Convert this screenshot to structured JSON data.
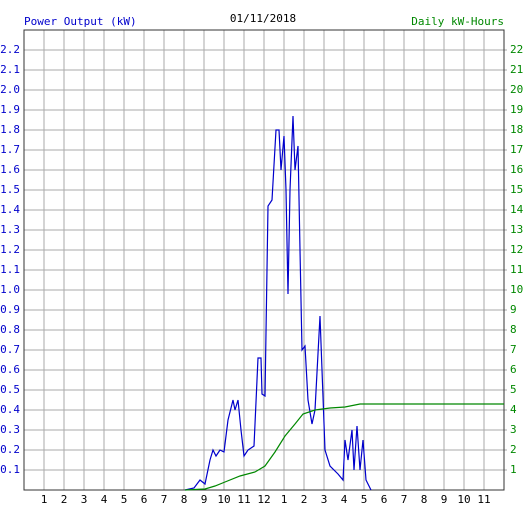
{
  "chart_data": {
    "type": "line",
    "title": "01/11/2018",
    "ylabel": "Power Output (kW)",
    "y2label": "Daily kW-Hours",
    "xlim": [
      0,
      24
    ],
    "xticks": [
      1,
      2,
      3,
      4,
      5,
      6,
      7,
      8,
      9,
      10,
      11,
      12,
      {
        "value": 13,
        "label": "1"
      },
      {
        "value": 14,
        "label": "2"
      },
      {
        "value": 15,
        "label": "3"
      },
      {
        "value": 16,
        "label": "4"
      },
      {
        "value": 17,
        "label": "5"
      },
      {
        "value": 18,
        "label": "6"
      },
      {
        "value": 19,
        "label": "7"
      },
      {
        "value": 20,
        "label": "8"
      },
      {
        "value": 21,
        "label": "9"
      },
      {
        "value": 22,
        "label": "10"
      },
      {
        "value": 23,
        "label": "11"
      }
    ],
    "ylim": [
      0,
      2.3
    ],
    "yticks": [
      0.1,
      0.2,
      0.3,
      0.4,
      0.5,
      0.6,
      0.7,
      0.8,
      0.9,
      {
        "value": 1,
        "label": "1.0"
      },
      1.1,
      1.2,
      1.3,
      1.4,
      1.5,
      1.6,
      1.7,
      1.8,
      1.9,
      {
        "value": 2,
        "label": "2.0"
      },
      2.1,
      2.2
    ],
    "y2lim": [
      0,
      23
    ],
    "y2ticks": [
      1,
      2,
      3,
      4,
      5,
      6,
      7,
      8,
      9,
      10,
      11,
      12,
      13,
      14,
      15,
      16,
      17,
      18,
      19,
      20,
      21,
      22
    ],
    "grid": true,
    "ylabel_color": "#0000cc",
    "y2label_color": "#008800",
    "series": [
      {
        "color": "#0000cc",
        "axis": "y",
        "x": [
          8.05,
          8.5,
          8.8,
          9.05,
          9.3,
          9.45,
          9.6,
          9.8,
          10.0,
          10.2,
          10.45,
          10.55,
          10.7,
          10.85,
          11.0,
          11.2,
          11.5,
          11.7,
          11.85,
          11.9,
          12.05,
          12.2,
          12.4,
          12.6,
          12.75,
          12.85,
          13.0,
          13.1,
          13.2,
          13.3,
          13.45,
          13.55,
          13.7,
          13.8,
          13.9,
          14.05,
          14.2,
          14.4,
          14.55,
          14.8,
          14.9,
          15.05,
          15.3,
          15.7,
          15.95,
          16.05,
          16.2,
          16.4,
          16.5,
          16.65,
          16.8,
          16.95,
          17.1,
          17.35
        ],
        "values": [
          0,
          0.01,
          0.05,
          0.03,
          0.15,
          0.2,
          0.17,
          0.2,
          0.19,
          0.35,
          0.45,
          0.4,
          0.45,
          0.3,
          0.17,
          0.2,
          0.22,
          0.66,
          0.66,
          0.48,
          0.47,
          1.42,
          1.45,
          1.8,
          1.8,
          1.6,
          1.77,
          1.5,
          0.98,
          1.5,
          1.87,
          1.6,
          1.72,
          1.2,
          0.7,
          0.72,
          0.45,
          0.33,
          0.4,
          0.87,
          0.6,
          0.2,
          0.12,
          0.08,
          0.05,
          0.25,
          0.15,
          0.3,
          0.1,
          0.32,
          0.1,
          0.25,
          0.05,
          0
        ]
      },
      {
        "color": "#008800",
        "axis": "y2",
        "x": [
          8.05,
          9.05,
          9.55,
          10.05,
          10.8,
          11.55,
          12.05,
          12.55,
          13.05,
          13.55,
          13.95,
          14.55,
          15.3,
          16.05,
          16.8,
          24
        ],
        "values": [
          0,
          0.05,
          0.2,
          0.4,
          0.7,
          0.9,
          1.2,
          1.9,
          2.7,
          3.3,
          3.8,
          4.0,
          4.1,
          4.15,
          4.3,
          4.3
        ]
      }
    ]
  }
}
